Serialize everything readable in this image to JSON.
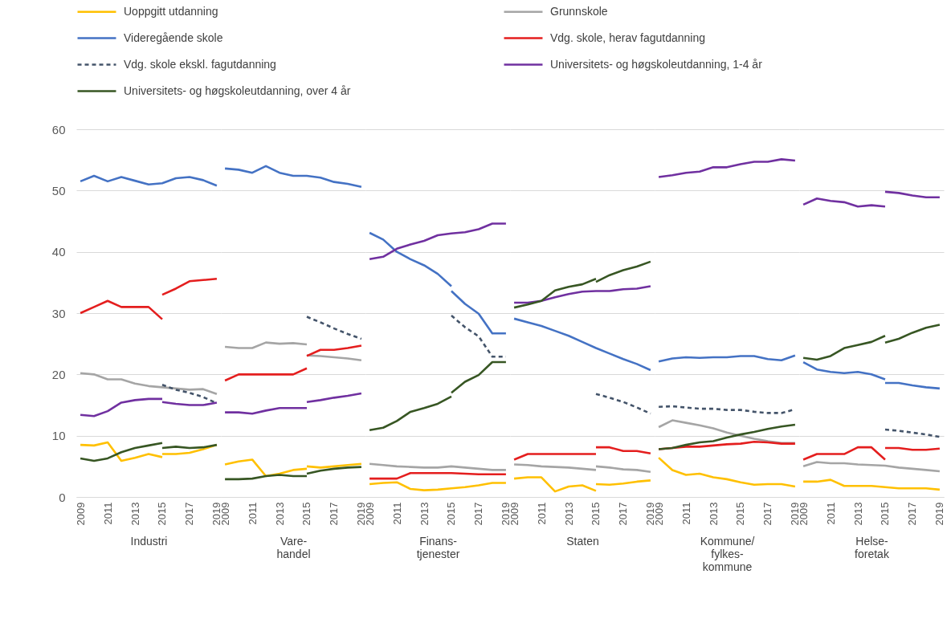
{
  "chart_data": [
    {
      "type": "line",
      "xlabel": "Industri",
      "categories": [
        "2009",
        null,
        "2011",
        null,
        "2013",
        null,
        "2015",
        null,
        "2017",
        null,
        "2019"
      ],
      "ylim": [
        0,
        60
      ],
      "yticks": [
        0,
        10,
        20,
        30,
        40,
        50,
        60
      ],
      "grid": "y",
      "legend": "top",
      "series": [
        {
          "name": "Uoppgitt utdanning",
          "color": "#ffc000",
          "values": [
            8.5,
            8.4,
            8.9,
            5.9,
            6.4,
            7.0,
            6.5,
            null,
            null,
            null,
            null
          ]
        },
        {
          "name": "Grunnskole",
          "color": "#a5a5a5",
          "values": [
            20.2,
            20.0,
            19.2,
            19.2,
            18.5,
            18.1,
            17.9,
            17.7,
            17.5,
            17.6,
            16.8
          ]
        },
        {
          "name": "Videregående skole",
          "color": "#4472c4",
          "values": [
            51.5,
            52.4,
            51.5,
            52.2,
            51.6,
            51.0,
            51.2,
            52.0,
            52.2,
            51.7,
            50.8
          ]
        },
        {
          "name": "Vdg. skole, herav fagutdanning",
          "color": "#e41e1e",
          "values": [
            30,
            31,
            32,
            31,
            31,
            31,
            29,
            null,
            null,
            null,
            null
          ]
        },
        {
          "name": "Vdg. skole ekskl. fagutdanning",
          "color": "#44546a",
          "line_style": "dashed",
          "values": [
            null,
            null,
            null,
            null,
            null,
            null,
            18.3,
            17.5,
            17.0,
            16.3,
            15.3
          ]
        },
        {
          "name": "Universitets- og høgskoleutdanning, 1-4 år",
          "color": "#7030a0",
          "values": [
            13.4,
            13.2,
            14.0,
            15.4,
            15.8,
            16.0,
            16.0,
            null,
            null,
            null,
            null
          ]
        },
        {
          "name": "Universitets- og høgskoleutdanning, over 4 år",
          "color": "#375623",
          "values": [
            6.3,
            5.9,
            6.3,
            7.3,
            8.0,
            8.4,
            8.8,
            null,
            null,
            null,
            null
          ]
        },
        {
          "color": "#ffc000",
          "values": [
            null,
            null,
            null,
            null,
            null,
            null,
            7.0,
            7.0,
            7.2,
            7.8,
            8.5
          ]
        },
        {
          "color": "#e41e1e",
          "values": [
            null,
            null,
            null,
            null,
            null,
            null,
            33,
            34,
            35.2,
            35.4,
            35.6
          ]
        },
        {
          "color": "#7030a0",
          "values": [
            null,
            null,
            null,
            null,
            null,
            null,
            15.5,
            15.2,
            15.0,
            15.0,
            15.4
          ]
        },
        {
          "color": "#375623",
          "values": [
            null,
            null,
            null,
            null,
            null,
            null,
            8.0,
            8.2,
            8.0,
            8.1,
            8.5
          ]
        }
      ]
    },
    {
      "type": "line",
      "xlabel": "Vare-handel",
      "categories": [
        "2009",
        null,
        "2011",
        null,
        "2013",
        null,
        "2015",
        null,
        "2017",
        null,
        "2019"
      ],
      "ylim": [
        0,
        60
      ],
      "yticks": [
        0,
        10,
        20,
        30,
        40,
        50,
        60
      ],
      "grid": "y",
      "tick_labels": "x",
      "series": [
        {
          "color": "#ffc000",
          "values": [
            5.3,
            5.8,
            6.1,
            3.4,
            3.8,
            4.4,
            4.6,
            null,
            null,
            null,
            null
          ]
        },
        {
          "color": "#a5a5a5",
          "values": [
            24.5,
            24.3,
            24.3,
            25.2,
            25.0,
            25.1,
            24.9,
            null,
            null,
            null,
            null
          ]
        },
        {
          "color": "#4472c4",
          "values": [
            53.6,
            53.4,
            52.9,
            54.0,
            52.9,
            52.4,
            52.4,
            52.1,
            51.4,
            51.1,
            50.6
          ]
        },
        {
          "color": "#e41e1e",
          "values": [
            19.0,
            20,
            20,
            20,
            20,
            20,
            21.0,
            null,
            null,
            null,
            null
          ]
        },
        {
          "color": "#44546a",
          "line_style": "dashed",
          "values": [
            null,
            null,
            null,
            null,
            null,
            null,
            29.4,
            28.5,
            27.5,
            26.6,
            25.8
          ]
        },
        {
          "color": "#7030a0",
          "values": [
            13.8,
            13.8,
            13.6,
            14.1,
            14.5,
            14.5,
            14.5,
            null,
            null,
            null,
            null
          ]
        },
        {
          "color": "#375623",
          "values": [
            2.9,
            2.9,
            3.0,
            3.4,
            3.6,
            3.4,
            3.4,
            null,
            null,
            null,
            null
          ]
        },
        {
          "color": "#ffc000",
          "values": [
            null,
            null,
            null,
            null,
            null,
            null,
            5.0,
            4.8,
            5.0,
            5.2,
            5.4
          ]
        },
        {
          "color": "#a5a5a5",
          "values": [
            null,
            null,
            null,
            null,
            null,
            null,
            23.1,
            23.0,
            22.8,
            22.6,
            22.3
          ]
        },
        {
          "color": "#e41e1e",
          "values": [
            null,
            null,
            null,
            null,
            null,
            null,
            23.0,
            24.0,
            24.0,
            24.3,
            24.7
          ]
        },
        {
          "color": "#7030a0",
          "values": [
            null,
            null,
            null,
            null,
            null,
            null,
            15.5,
            15.8,
            16.2,
            16.5,
            16.9
          ]
        },
        {
          "color": "#375623",
          "values": [
            null,
            null,
            null,
            null,
            null,
            null,
            3.8,
            4.3,
            4.6,
            4.8,
            4.9
          ]
        }
      ]
    },
    {
      "type": "line",
      "xlabel": "Finans-tjenester",
      "categories": [
        "2009",
        null,
        "2011",
        null,
        "2013",
        null,
        "2015",
        null,
        "2017",
        null,
        "2019"
      ],
      "ylim": [
        0,
        60
      ],
      "yticks": [
        0,
        10,
        20,
        30,
        40,
        50,
        60
      ],
      "grid": "y",
      "tick_labels": "x",
      "series": [
        {
          "color": "#ffc000",
          "values": [
            2.1,
            2.3,
            2.4,
            1.3,
            1.1,
            1.2,
            1.4,
            1.6,
            1.9,
            2.3,
            2.3
          ]
        },
        {
          "color": "#a5a5a5",
          "values": [
            5.4,
            5.2,
            5.0,
            4.9,
            4.8,
            4.8,
            5.0,
            4.8,
            4.6,
            4.4,
            4.4
          ]
        },
        {
          "color": "#4472c4",
          "values": [
            43.1,
            42.0,
            40.0,
            38.8,
            37.8,
            36.4,
            34.4,
            null,
            null,
            null,
            null
          ]
        },
        {
          "color": "#e41e1e",
          "values": [
            3.0,
            3.0,
            3.0,
            3.9,
            3.9,
            3.9,
            3.9,
            3.8,
            3.7,
            3.7,
            3.7
          ]
        },
        {
          "color": "#44546a",
          "line_style": "dashed",
          "values": [
            null,
            null,
            null,
            null,
            null,
            null,
            29.6,
            27.7,
            26.2,
            22.9,
            22.9
          ]
        },
        {
          "color": "#7030a0",
          "values": [
            38.8,
            39.2,
            40.5,
            41.2,
            41.8,
            42.7,
            43.0,
            43.2,
            43.7,
            44.6,
            44.6
          ]
        },
        {
          "color": "#375623",
          "values": [
            10.9,
            11.3,
            12.4,
            13.9,
            14.5,
            15.2,
            16.4,
            null,
            null,
            null,
            null
          ]
        },
        {
          "color": "#4472c4",
          "values": [
            null,
            null,
            null,
            null,
            null,
            null,
            33.6,
            31.5,
            29.9,
            26.7,
            26.7
          ]
        },
        {
          "color": "#375623",
          "values": [
            null,
            null,
            null,
            null,
            null,
            null,
            17.0,
            18.8,
            19.9,
            22.0,
            22.0
          ]
        }
      ]
    },
    {
      "type": "line",
      "xlabel": "Staten",
      "categories": [
        "2009",
        null,
        "2011",
        null,
        "2013",
        null,
        "2015",
        null,
        "2017",
        null,
        "2019"
      ],
      "ylim": [
        0,
        60
      ],
      "yticks": [
        0,
        10,
        20,
        30,
        40,
        50,
        60
      ],
      "grid": "y",
      "tick_labels": "x",
      "series": [
        {
          "color": "#ffc000",
          "values": [
            3.0,
            3.2,
            3.2,
            0.9,
            1.7,
            1.9,
            1.0,
            null,
            null,
            null,
            null
          ]
        },
        {
          "color": "#a5a5a5",
          "values": [
            5.3,
            5.2,
            5.0,
            4.9,
            4.8,
            4.6,
            4.4,
            null,
            null,
            null,
            null
          ]
        },
        {
          "color": "#4472c4",
          "values": [
            29.1,
            28.5,
            27.9,
            27.1,
            26.3,
            25.3,
            24.3,
            23.4,
            22.5,
            21.7,
            20.7
          ]
        },
        {
          "color": "#e41e1e",
          "values": [
            6.1,
            7.0,
            7.0,
            7.0,
            7.0,
            7.0,
            7.0,
            null,
            null,
            null,
            null
          ]
        },
        {
          "color": "#44546a",
          "line_style": "dashed",
          "values": [
            null,
            null,
            null,
            null,
            null,
            null,
            16.8,
            16.2,
            15.5,
            14.6,
            13.6
          ]
        },
        {
          "color": "#7030a0",
          "values": [
            31.7,
            31.7,
            32.0,
            32.6,
            33.1,
            33.5,
            33.6,
            33.6,
            33.9,
            34.0,
            34.4
          ]
        },
        {
          "color": "#375623",
          "values": [
            30.9,
            31.4,
            32.0,
            33.7,
            34.3,
            34.7,
            35.6,
            null,
            null,
            null,
            null
          ]
        },
        {
          "color": "#ffc000",
          "values": [
            null,
            null,
            null,
            null,
            null,
            null,
            2.1,
            2.0,
            2.2,
            2.5,
            2.7
          ]
        },
        {
          "color": "#a5a5a5",
          "values": [
            null,
            null,
            null,
            null,
            null,
            null,
            5.0,
            4.8,
            4.5,
            4.4,
            4.1
          ]
        },
        {
          "color": "#e41e1e",
          "values": [
            null,
            null,
            null,
            null,
            null,
            null,
            8.1,
            8.1,
            7.5,
            7.5,
            7.1
          ]
        },
        {
          "color": "#375623",
          "values": [
            null,
            null,
            null,
            null,
            null,
            null,
            35.1,
            36.2,
            37.0,
            37.6,
            38.4
          ]
        }
      ]
    },
    {
      "type": "line",
      "xlabel": "Kommune/fylkes-kommune",
      "categories": [
        "2009",
        null,
        "2011",
        null,
        "2013",
        null,
        "2015",
        null,
        "2017",
        null,
        "2019"
      ],
      "ylim": [
        0,
        60
      ],
      "yticks": [
        0,
        10,
        20,
        30,
        40,
        50,
        60
      ],
      "grid": "y",
      "tick_labels": "x",
      "series": [
        {
          "color": "#ffc000",
          "values": [
            6.4,
            4.4,
            3.6,
            3.8,
            3.2,
            2.9,
            2.4,
            2.0,
            2.1,
            2.1,
            1.7
          ]
        },
        {
          "color": "#a5a5a5",
          "values": [
            11.4,
            12.5,
            12.1,
            11.7,
            11.2,
            10.5,
            10.0,
            9.5,
            9.1,
            8.8,
            8.8
          ]
        },
        {
          "color": "#4472c4",
          "values": [
            22.1,
            22.6,
            22.8,
            22.7,
            22.8,
            22.8,
            23.0,
            23.0,
            22.5,
            22.3,
            23.1
          ]
        },
        {
          "color": "#e41e1e",
          "values": [
            7.8,
            8.0,
            8.2,
            8.2,
            8.4,
            8.6,
            8.7,
            9.0,
            8.9,
            8.7,
            8.7
          ]
        },
        {
          "color": "#44546a",
          "line_style": "dashed",
          "values": [
            14.7,
            14.8,
            14.6,
            14.4,
            14.4,
            14.2,
            14.2,
            13.9,
            13.7,
            13.7,
            14.3
          ]
        },
        {
          "color": "#7030a0",
          "values": [
            52.2,
            52.5,
            52.9,
            53.1,
            53.8,
            53.8,
            54.3,
            54.7,
            54.7,
            55.1,
            54.9
          ]
        },
        {
          "color": "#375623",
          "values": [
            7.8,
            8.0,
            8.5,
            8.9,
            9.1,
            9.7,
            10.2,
            10.6,
            11.1,
            11.5,
            11.8
          ]
        }
      ]
    },
    {
      "type": "line",
      "xlabel": "Helse-foretak",
      "categories": [
        "2009",
        null,
        "2011",
        null,
        "2013",
        null,
        "2015",
        null,
        "2017",
        null,
        "2019"
      ],
      "ylim": [
        0,
        60
      ],
      "yticks": [
        0,
        10,
        20,
        30,
        40,
        50,
        60
      ],
      "grid": "y",
      "tick_labels": "x",
      "series": [
        {
          "color": "#ffc000",
          "values": [
            2.5,
            2.5,
            2.8,
            1.8,
            1.8,
            1.8,
            1.6,
            1.4,
            1.4,
            1.4,
            1.2
          ]
        },
        {
          "color": "#a5a5a5",
          "values": [
            5.0,
            5.7,
            5.5,
            5.5,
            5.3,
            5.2,
            5.1,
            4.8,
            4.6,
            4.4,
            4.2
          ]
        },
        {
          "color": "#4472c4",
          "values": [
            22.0,
            20.8,
            20.4,
            20.2,
            20.4,
            20.0,
            19.2,
            null,
            null,
            null,
            null
          ]
        },
        {
          "color": "#e41e1e",
          "values": [
            6.1,
            7.0,
            7.0,
            7.0,
            8.1,
            8.1,
            6.1,
            null,
            null,
            null,
            null
          ]
        },
        {
          "color": "#44546a",
          "line_style": "dashed",
          "values": [
            null,
            null,
            null,
            null,
            null,
            null,
            11.0,
            10.8,
            10.5,
            10.2,
            9.8
          ]
        },
        {
          "color": "#7030a0",
          "values": [
            47.7,
            48.7,
            48.3,
            48.1,
            47.4,
            47.6,
            47.4,
            null,
            null,
            null,
            null
          ]
        },
        {
          "color": "#375623",
          "values": [
            22.7,
            22.4,
            23.0,
            24.3,
            24.8,
            25.3,
            26.3,
            null,
            null,
            null,
            null
          ]
        },
        {
          "color": "#4472c4",
          "values": [
            null,
            null,
            null,
            null,
            null,
            null,
            18.6,
            18.6,
            18.2,
            17.9,
            17.7
          ]
        },
        {
          "color": "#e41e1e",
          "values": [
            null,
            null,
            null,
            null,
            null,
            null,
            8.0,
            8.0,
            7.7,
            7.7,
            7.9
          ]
        },
        {
          "color": "#7030a0",
          "values": [
            null,
            null,
            null,
            null,
            null,
            null,
            49.8,
            49.6,
            49.2,
            48.9,
            48.9
          ]
        },
        {
          "color": "#375623",
          "values": [
            null,
            null,
            null,
            null,
            null,
            null,
            25.2,
            25.8,
            26.8,
            27.6,
            28.1
          ]
        }
      ]
    }
  ]
}
